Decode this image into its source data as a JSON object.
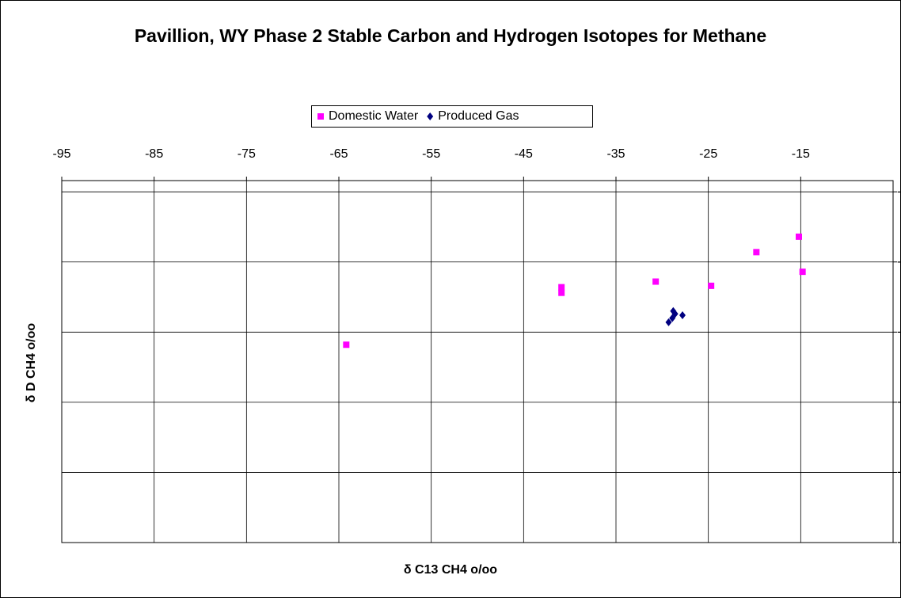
{
  "chart_data": {
    "type": "scatter",
    "title": "Pavillion, WY Phase 2 Stable Carbon and Hydrogen Isotopes for Methane",
    "x_label": "δ C13 CH4 o/oo",
    "y_label": "δ D CH4 o/oo",
    "xlim": [
      -95,
      -5
    ],
    "xticks": [
      -95,
      -85,
      -75,
      -65,
      -55,
      -45,
      -35,
      -25,
      -15
    ],
    "ylim": [
      -360,
      -102
    ],
    "yticks": [
      -110,
      -160,
      -210,
      -260,
      -310,
      -360
    ],
    "grid": true,
    "legend": "top",
    "series": [
      {
        "name": "Domestic Water",
        "color": "#ff00ff",
        "marker": "square",
        "x": [
          -64.2,
          -40.9,
          -40.9,
          -30.7,
          -24.7,
          -19.8,
          -15.2,
          -14.8
        ],
        "values": [
          -219,
          -178,
          -182,
          -174,
          -177,
          -153,
          -142,
          -167
        ]
      },
      {
        "name": "Produced Gas",
        "color": "#000080",
        "marker": "diamond",
        "x": [
          -29.3,
          -28.8,
          -28.6,
          -28.9,
          -27.8
        ],
        "values": [
          -203,
          -195,
          -197,
          -200,
          -198
        ]
      }
    ]
  }
}
